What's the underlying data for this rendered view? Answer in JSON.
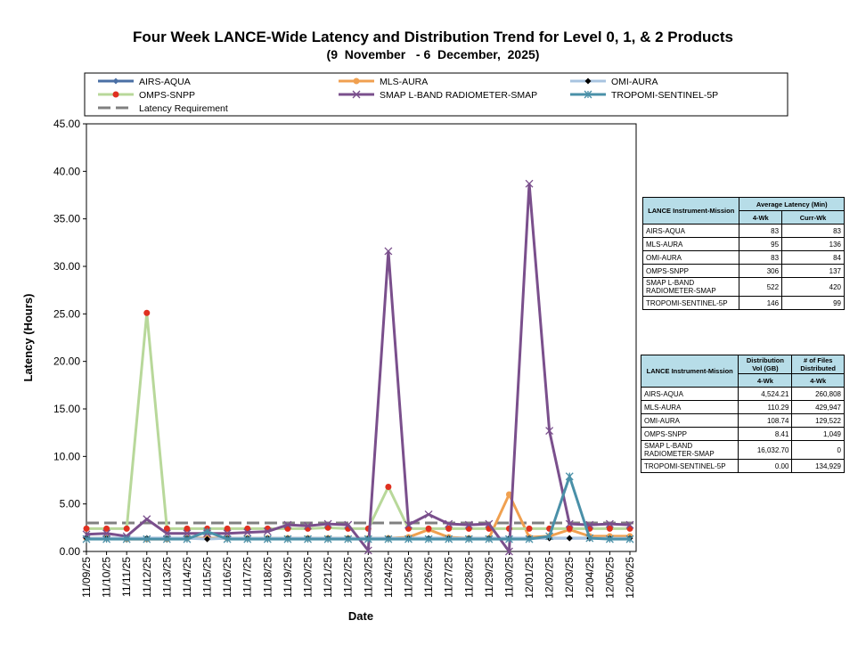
{
  "chart_data": {
    "type": "line",
    "title": "Four Week LANCE-Wide Latency and Distribution Trend for Level 0, 1, & 2 Products",
    "subtitle": "(9  November   - 6  December,  2025)",
    "xlabel": "Date",
    "ylabel": "Latency (Hours)",
    "categories": [
      "11/09/25",
      "11/10/25",
      "11/11/25",
      "11/12/25",
      "11/13/25",
      "11/14/25",
      "11/15/25",
      "11/16/25",
      "11/17/25",
      "11/18/25",
      "11/19/25",
      "11/20/25",
      "11/21/25",
      "11/22/25",
      "11/23/25",
      "11/24/25",
      "11/25/25",
      "11/26/25",
      "11/27/25",
      "11/28/25",
      "11/29/25",
      "11/30/25",
      "12/01/25",
      "12/02/25",
      "12/03/25",
      "12/04/25",
      "12/05/25",
      "12/06/25"
    ],
    "ylim": [
      0,
      45
    ],
    "yticks": [
      {
        "value": 0,
        "label": "0.00"
      },
      {
        "value": 5,
        "label": "5.00"
      },
      {
        "value": 10,
        "label": "10.00"
      },
      {
        "value": 15,
        "label": "15.00"
      },
      {
        "value": 20,
        "label": "20.00"
      },
      {
        "value": 25,
        "label": "25.00"
      },
      {
        "value": 30,
        "label": "30.00"
      },
      {
        "value": 35,
        "label": "35.00"
      },
      {
        "value": 40,
        "label": "40.00"
      },
      {
        "value": 45,
        "label": "45.00"
      }
    ],
    "series": [
      {
        "name": "AIRS-AQUA",
        "color": "#4a6fa5",
        "marker": "diamond",
        "marker_color": "#4a6fa5",
        "values": [
          1.4,
          1.4,
          1.4,
          1.4,
          1.4,
          1.4,
          1.4,
          1.4,
          1.4,
          1.4,
          1.4,
          1.4,
          1.4,
          1.4,
          1.4,
          1.4,
          1.4,
          1.4,
          1.4,
          1.4,
          1.4,
          1.4,
          1.4,
          1.4,
          1.4,
          1.4,
          1.4,
          1.4
        ]
      },
      {
        "name": "MLS-AURA",
        "color": "#f0a050",
        "marker": "circle",
        "marker_color": "#f0a050",
        "values": [
          1.4,
          1.4,
          1.3,
          1.3,
          1.3,
          1.4,
          1.4,
          1.4,
          1.4,
          1.4,
          1.4,
          1.4,
          1.4,
          1.4,
          1.4,
          1.4,
          1.5,
          2.3,
          1.5,
          1.4,
          1.4,
          6.0,
          1.5,
          1.6,
          2.3,
          1.6,
          1.6,
          1.6
        ]
      },
      {
        "name": "OMI-AURA",
        "color": "#a8c4e0",
        "marker": "diamond",
        "marker_color": "#000000",
        "values": [
          1.4,
          1.4,
          1.4,
          1.4,
          1.4,
          1.4,
          1.3,
          1.4,
          1.4,
          1.4,
          1.4,
          1.4,
          1.4,
          1.4,
          1.4,
          1.4,
          1.4,
          1.4,
          1.4,
          1.4,
          1.4,
          1.4,
          1.4,
          1.4,
          1.4,
          1.4,
          1.4,
          1.4
        ]
      },
      {
        "name": "OMPS-SNPP",
        "color": "#b8d89a",
        "marker": "circle",
        "marker_color": "#e03020",
        "values": [
          2.4,
          2.4,
          2.4,
          25.1,
          2.4,
          2.4,
          2.4,
          2.4,
          2.4,
          2.4,
          2.4,
          2.4,
          2.5,
          2.4,
          2.4,
          6.8,
          2.4,
          2.4,
          2.4,
          2.4,
          2.4,
          2.4,
          2.4,
          2.4,
          2.4,
          2.4,
          2.4,
          2.4
        ]
      },
      {
        "name": "SMAP L-BAND RADIOMETER-SMAP",
        "color": "#7a4f8c",
        "marker": "x",
        "marker_color": "#7a4f8c",
        "values": [
          1.8,
          1.9,
          1.6,
          3.4,
          1.9,
          1.9,
          1.9,
          1.9,
          2.0,
          2.1,
          2.8,
          2.7,
          2.9,
          2.8,
          0.1,
          31.6,
          2.8,
          3.9,
          2.9,
          2.8,
          2.9,
          0.0,
          38.7,
          12.7,
          2.9,
          2.8,
          2.9,
          2.8
        ]
      },
      {
        "name": "TROPOMI-SENTINEL-5P",
        "color": "#4a90a8",
        "marker": "star",
        "marker_color": "#4a90a8",
        "values": [
          1.3,
          1.3,
          1.3,
          1.3,
          1.3,
          1.3,
          2.1,
          1.3,
          1.3,
          1.3,
          1.3,
          1.3,
          1.3,
          1.3,
          1.3,
          1.3,
          1.3,
          1.3,
          1.3,
          1.3,
          1.3,
          1.3,
          1.3,
          1.6,
          7.9,
          1.4,
          1.3,
          1.3
        ]
      }
    ],
    "requirement": {
      "name": "Latency Requirement",
      "value": 3.0,
      "color": "#808080"
    }
  },
  "latency_table": {
    "headers": [
      "LANCE Instrument-Mission",
      "Average Latency (Min)",
      "4-Wk",
      "Curr-Wk"
    ],
    "rows": [
      [
        "AIRS-AQUA",
        "83",
        "83"
      ],
      [
        "MLS-AURA",
        "95",
        "136"
      ],
      [
        "OMI-AURA",
        "83",
        "84"
      ],
      [
        "OMPS-SNPP",
        "306",
        "137"
      ],
      [
        "SMAP L-BAND RADIOMETER-SMAP",
        "522",
        "420"
      ],
      [
        "TROPOMI-SENTINEL-5P",
        "146",
        "99"
      ]
    ]
  },
  "distribution_table": {
    "headers": [
      "LANCE Instrument-Mission",
      "Distribution Vol (GB)",
      "# of Files Distributed",
      "4-Wk",
      "4-Wk"
    ],
    "rows": [
      [
        "AIRS-AQUA",
        "4,524.21",
        "260,808"
      ],
      [
        "MLS-AURA",
        "110.29",
        "429,947"
      ],
      [
        "OMI-AURA",
        "108.74",
        "129,522"
      ],
      [
        "OMPS-SNPP",
        "8.41",
        "1,049"
      ],
      [
        "SMAP L-BAND RADIOMETER-SMAP",
        "16,032.70",
        "0"
      ],
      [
        "TROPOMI-SENTINEL-5P",
        "0.00",
        "134,929"
      ]
    ]
  }
}
